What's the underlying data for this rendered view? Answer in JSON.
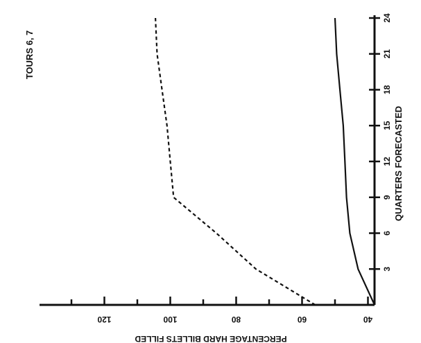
{
  "chart_data": {
    "type": "line",
    "title": "TOURS 6, 7",
    "xlabel": "QUARTERS FORECASTED",
    "ylabel": "PERCENTAGE HARD BILLETS FILLED",
    "x_ticks": [
      "3",
      "6",
      "9",
      "12",
      "15",
      "18",
      "21",
      "24"
    ],
    "y_ticks": [
      "40",
      "60",
      "80",
      "100",
      "120"
    ],
    "xlim": [
      0,
      24
    ],
    "ylim": [
      38,
      130
    ],
    "orientation": "rotated-90-ccw",
    "grid": false,
    "series": [
      {
        "style": "dashed",
        "x": [
          0,
          3,
          6,
          9,
          12,
          15,
          18,
          21,
          24
        ],
        "y": [
          56,
          74,
          86,
          99,
          100,
          101,
          102.5,
          104,
          104.5
        ]
      },
      {
        "style": "solid",
        "x": [
          0,
          3,
          6,
          9,
          12,
          15,
          18,
          21,
          24
        ],
        "y": [
          38,
          43,
          45.5,
          46.5,
          47,
          47.5,
          48.5,
          49.5,
          50
        ]
      }
    ]
  }
}
